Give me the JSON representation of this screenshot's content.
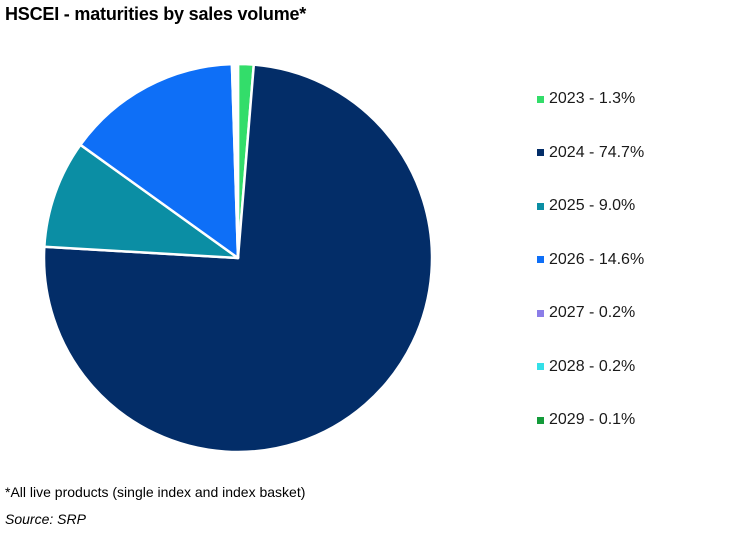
{
  "title": "HSCEI - maturities by sales volume*",
  "footnote": "*All live products (single index and index basket)",
  "source": "Source: SRP",
  "chart_data": {
    "type": "pie",
    "title": "HSCEI - maturities by sales volume*",
    "unit": "%",
    "start_angle_deg": 0,
    "direction": "clockwise",
    "legend_position": "right",
    "slices": [
      {
        "label": "2023 - 1.3%",
        "category": "2023",
        "value": 1.3,
        "color": "#33dd6a"
      },
      {
        "label": "2024 - 74.7%",
        "category": "2024",
        "value": 74.7,
        "color": "#032d68"
      },
      {
        "label": "2025 - 9.0%",
        "category": "2025",
        "value": 9.0,
        "color": "#0b8ea4"
      },
      {
        "label": "2026 - 14.6%",
        "category": "2026",
        "value": 14.6,
        "color": "#0e6ff7"
      },
      {
        "label": "2027 - 0.2%",
        "category": "2027",
        "value": 0.2,
        "color": "#8b7de8"
      },
      {
        "label": "2028 - 0.2%",
        "category": "2028",
        "value": 0.2,
        "color": "#34e0e8"
      },
      {
        "label": "2029 - 0.1%",
        "category": "2029",
        "value": 0.1,
        "color": "#139b3a"
      }
    ]
  }
}
